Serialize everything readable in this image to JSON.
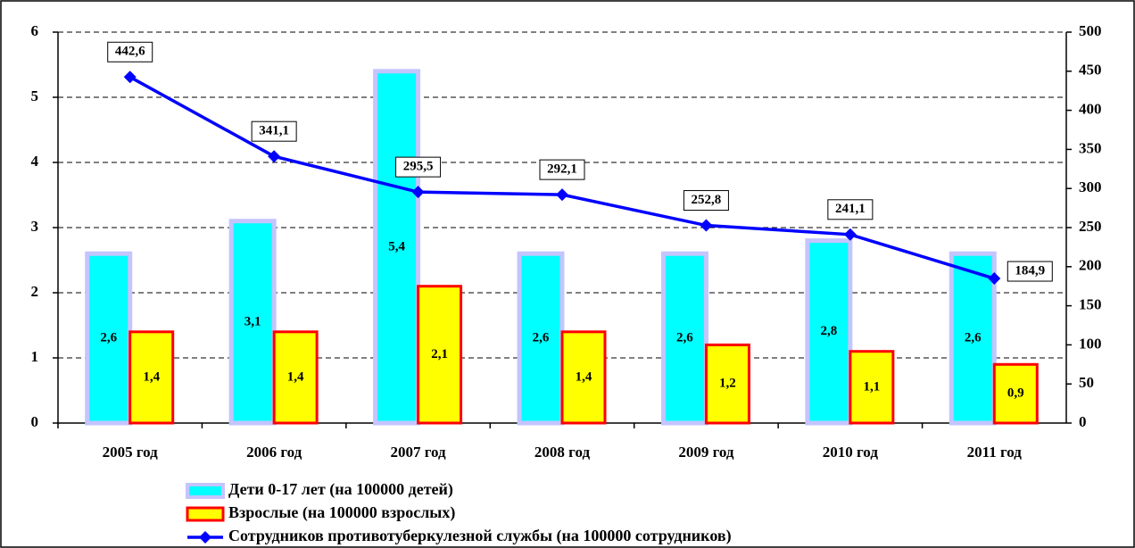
{
  "chart_data": {
    "type": "bar-line",
    "categories": [
      "2005 год",
      "2006 год",
      "2007 год",
      "2008 год",
      "2009 год",
      "2010 год",
      "2011 год"
    ],
    "series": [
      {
        "name": "Дети 0-17 лет (на 100000 детей)",
        "type": "bar",
        "color": "#00ffff",
        "border": "#c4c4ff",
        "values": [
          2.6,
          3.1,
          5.4,
          2.6,
          2.6,
          2.8,
          2.6
        ],
        "value_labels": [
          "2,6",
          "3,1",
          "5,4",
          "2,6",
          "2,6",
          "2,8",
          "2,6"
        ]
      },
      {
        "name": "Взрослые (на 100000 взрослых)",
        "type": "bar",
        "color": "#ffff00",
        "border": "#ff0000",
        "values": [
          1.4,
          1.4,
          2.1,
          1.4,
          1.2,
          1.1,
          0.9
        ],
        "value_labels": [
          "1,4",
          "1,4",
          "2,1",
          "1,4",
          "1,2",
          "1,1",
          "0,9"
        ]
      },
      {
        "name": "Сотрудников противотуберкулезной службы (на 100000 сотрудников)",
        "type": "line",
        "axis": "y2",
        "color": "#0000ff",
        "values": [
          442.6,
          341.1,
          295.5,
          292.1,
          252.8,
          241.1,
          184.9
        ],
        "value_labels": [
          "442,6",
          "341,1",
          "295,5",
          "292,1",
          "252,8",
          "241,1",
          "184,9"
        ]
      }
    ],
    "ylim": [
      0,
      6
    ],
    "yticks": [
      0,
      1,
      2,
      3,
      4,
      5,
      6
    ],
    "y2lim": [
      0,
      500
    ],
    "y2ticks": [
      0,
      50,
      100,
      150,
      200,
      250,
      300,
      350,
      400,
      450,
      500
    ],
    "grid": true
  }
}
